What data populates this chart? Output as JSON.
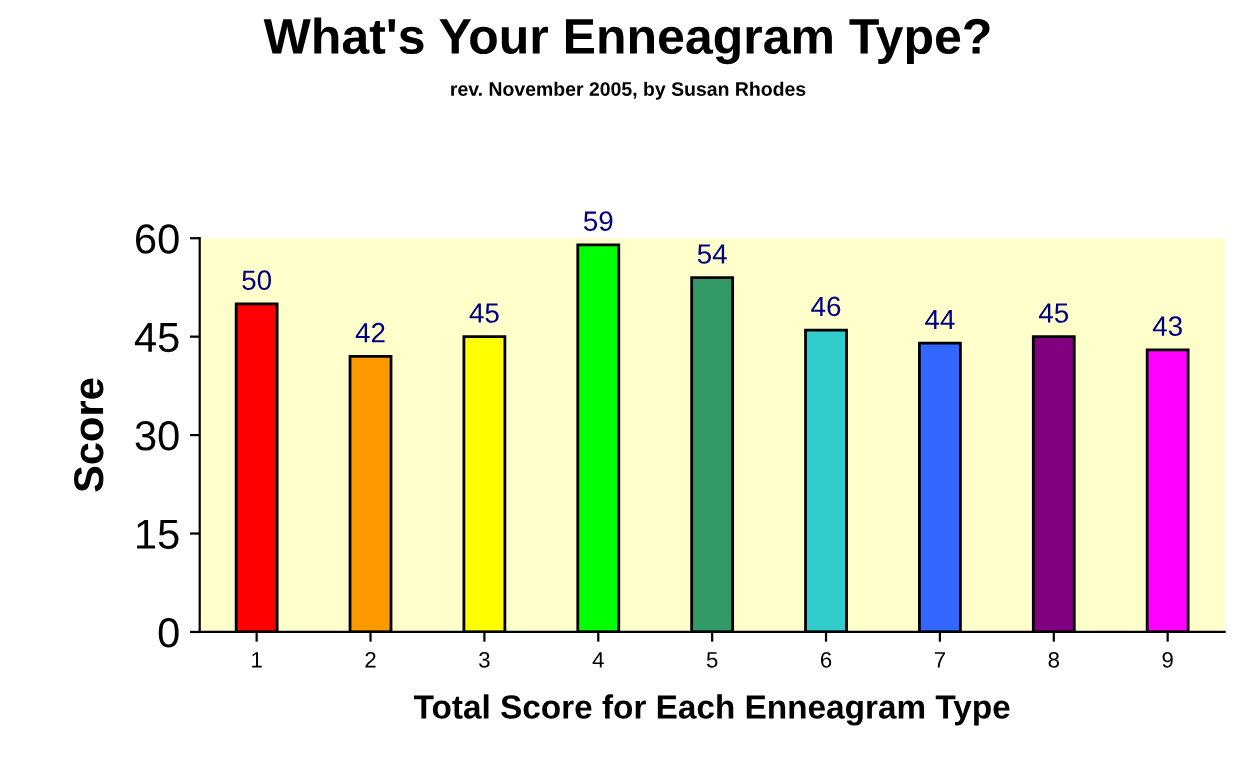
{
  "chart_data": {
    "type": "bar",
    "title": "What's Your Enneagram Type?",
    "subtitle": "rev. November 2005, by Susan Rhodes",
    "xlabel": "Total Score for Each Enneagram Type",
    "ylabel": "Score",
    "categories": [
      "1",
      "2",
      "3",
      "4",
      "5",
      "6",
      "7",
      "8",
      "9"
    ],
    "values": [
      50,
      42,
      45,
      59,
      54,
      46,
      44,
      45,
      43
    ],
    "colors": [
      "#ff0000",
      "#ff9900",
      "#ffff00",
      "#00ff00",
      "#339966",
      "#33cccc",
      "#3366ff",
      "#800080",
      "#ff00ff"
    ],
    "ylim": [
      0,
      60
    ],
    "yticks": [
      0,
      15,
      30,
      45,
      60
    ],
    "data_labels": true,
    "grid": false,
    "legend": false
  }
}
